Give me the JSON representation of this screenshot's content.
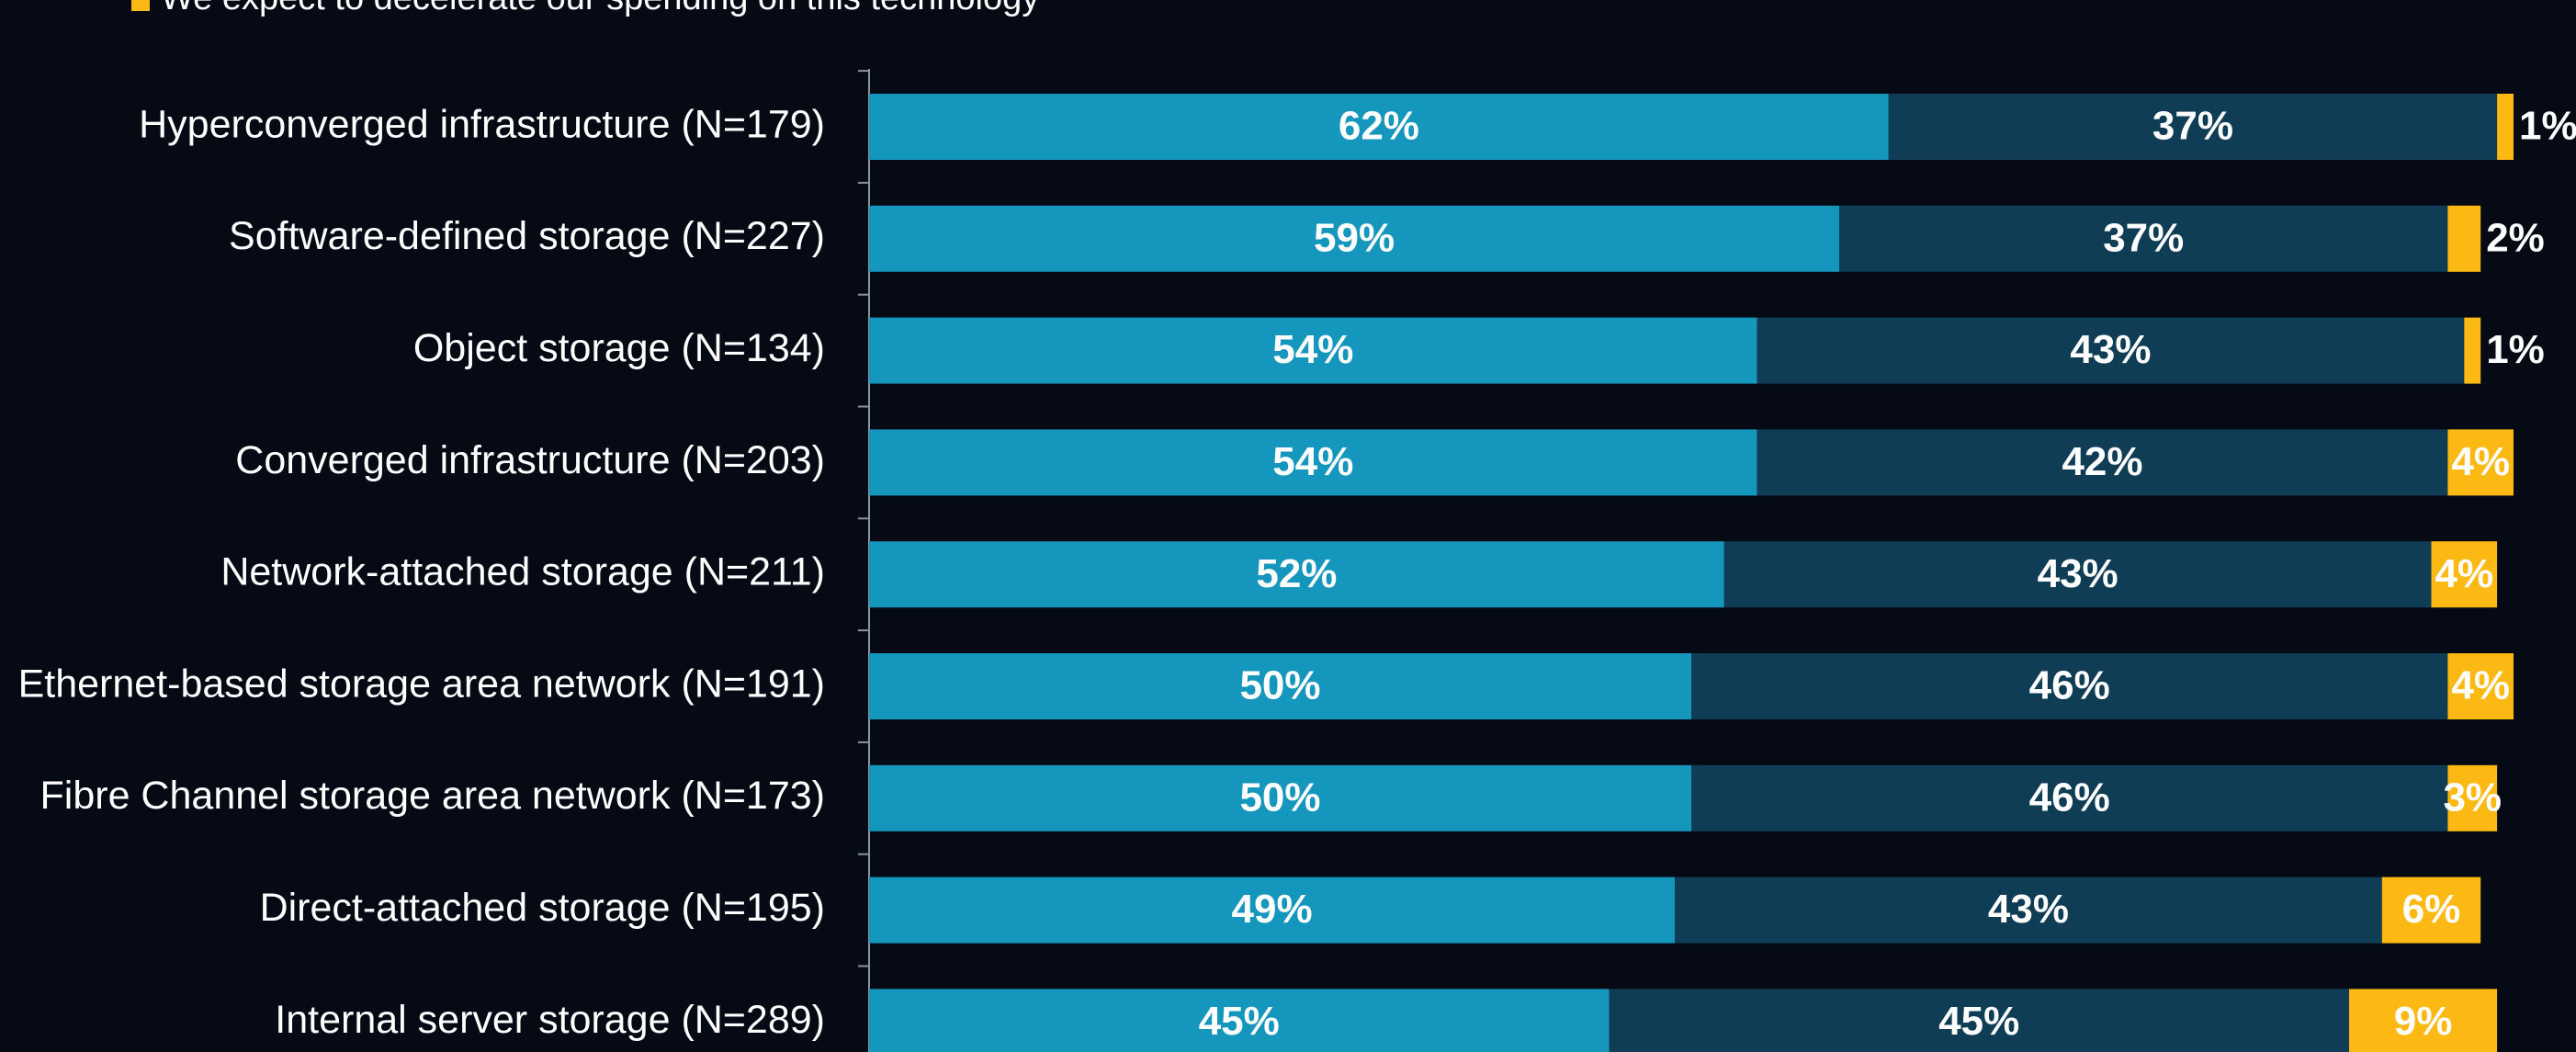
{
  "chart_data": {
    "type": "stacked-bar-horizontal",
    "categories": [
      "Hyperconverged infrastructure (N=179)",
      "Software-defined storage (N=227)",
      "Object storage (N=134)",
      "Converged infrastructure (N=203)",
      "Network-attached storage (N=211)",
      "Ethernet-based storage area network (N=191)",
      "Fibre Channel storage area network (N=173)",
      "Direct-attached storage (N=195)",
      "Internal server storage (N=289)"
    ],
    "series": [
      {
        "color": "#1596bc",
        "values": [
          62,
          59,
          54,
          54,
          52,
          50,
          50,
          49,
          45
        ],
        "value_labels": [
          "62%",
          "59%",
          "54%",
          "54%",
          "52%",
          "50%",
          "50%",
          "49%",
          "45%"
        ]
      },
      {
        "color": "#0f3d56",
        "values": [
          37,
          37,
          43,
          42,
          43,
          46,
          46,
          43,
          45
        ],
        "value_labels": [
          "37%",
          "37%",
          "43%",
          "42%",
          "43%",
          "46%",
          "46%",
          "43%",
          "45%"
        ]
      },
      {
        "name": "We expect to decelerate our spending on this technology",
        "color": "#fdb913",
        "values": [
          1,
          2,
          1,
          4,
          4,
          4,
          3,
          6,
          9
        ],
        "value_labels": [
          "1%",
          "2%",
          "1%",
          "4%",
          "4%",
          "4%",
          "3%",
          "6%",
          "9%"
        ]
      }
    ],
    "xlim": [
      0,
      100
    ]
  }
}
